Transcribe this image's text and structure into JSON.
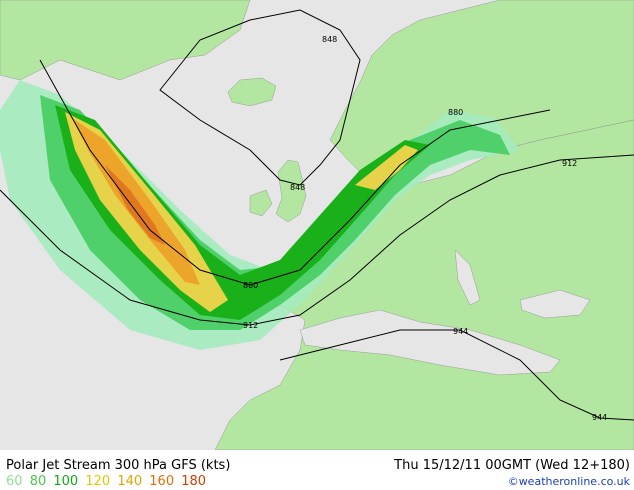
{
  "title": "Polar Jet Stream 300 hPa GFS (kts)",
  "datetime": "Thu 15/12/11 00GMT  (Wed 12+180)",
  "credit": "©weatheronline.co.uk",
  "legend": [
    {
      "value": "60",
      "color": "#8fe08f"
    },
    {
      "value": "80",
      "color": "#4cc84c"
    },
    {
      "value": "100",
      "color": "#12a812"
    },
    {
      "value": "120",
      "color": "#e6c700"
    },
    {
      "value": "140",
      "color": "#e8a000"
    },
    {
      "value": "160",
      "color": "#e26d00"
    },
    {
      "value": "180",
      "color": "#d43d00"
    }
  ],
  "contours": [
    {
      "label": "848"
    },
    {
      "label": "848"
    },
    {
      "label": "880"
    },
    {
      "label": "880"
    },
    {
      "label": "912"
    },
    {
      "label": "912"
    },
    {
      "label": "944"
    },
    {
      "label": "944"
    }
  ],
  "colors": {
    "sea": "#e6e6e6",
    "land": "#b3e6a0",
    "jet_60": "#a4ebbd",
    "jet_80": "#4fd06a",
    "jet_100": "#19b019",
    "jet_120": "#e6d34a",
    "jet_140": "#eca42a",
    "jet_160": "#e07820"
  }
}
